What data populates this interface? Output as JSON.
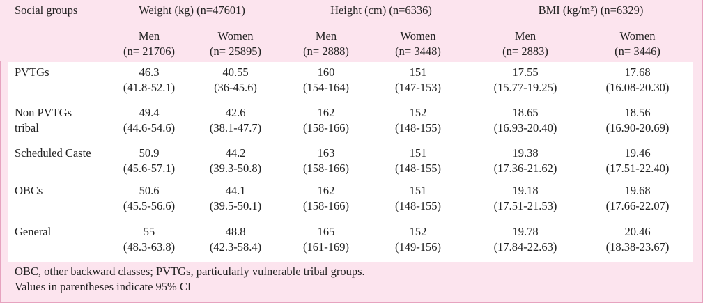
{
  "header": {
    "col0": "Social groups",
    "groups": [
      {
        "label": "Weight (kg) (n=47601)",
        "sub": [
          {
            "a": "Men",
            "b": "(n= 21706)"
          },
          {
            "a": "Women",
            "b": "(n= 25895)"
          }
        ]
      },
      {
        "label": "Height (cm) (n=6336)",
        "sub": [
          {
            "a": "Men",
            "b": "(n= 2888)"
          },
          {
            "a": "Women",
            "b": "(n= 3448)"
          }
        ]
      },
      {
        "label": "BMI (kg/m²) (n=6329)",
        "sub": [
          {
            "a": "Men",
            "b": "(n= 2883)"
          },
          {
            "a": "Women",
            "b": "(n= 3446)"
          }
        ]
      }
    ]
  },
  "rows": [
    {
      "label": [
        "PVTGs",
        ""
      ],
      "cells": [
        [
          "46.3",
          "(41.8-52.1)"
        ],
        [
          "40.55",
          "(36-45.6)"
        ],
        [
          "160",
          "(154-164)"
        ],
        [
          "151",
          "(147-153)"
        ],
        [
          "17.55",
          "(15.77-19.25)"
        ],
        [
          "17.68",
          "(16.08-20.30)"
        ]
      ]
    },
    {
      "label": [
        "Non PVTGs",
        "tribal"
      ],
      "cells": [
        [
          "49.4",
          "(44.6-54.6)"
        ],
        [
          "42.6",
          "(38.1-47.7)"
        ],
        [
          "162",
          "(158-166)"
        ],
        [
          "152",
          "(148-155)"
        ],
        [
          "18.65",
          "(16.93-20.40)"
        ],
        [
          "18.56",
          "(16.90-20.69)"
        ]
      ]
    },
    {
      "label": [
        "Scheduled Caste",
        ""
      ],
      "cells": [
        [
          "50.9",
          "(45.6-57.1)"
        ],
        [
          "44.2",
          "(39.3-50.8)"
        ],
        [
          "163",
          "(158-166)"
        ],
        [
          "151",
          "(148-155)"
        ],
        [
          "19.38",
          "(17.36-21.62)"
        ],
        [
          "19.46",
          "(17.51-22.40)"
        ]
      ]
    },
    {
      "label": [
        "OBCs",
        ""
      ],
      "cells": [
        [
          "50.6",
          "(45.5-56.6)"
        ],
        [
          "44.1",
          "(39.5-50.1)"
        ],
        [
          "162",
          "(158-166)"
        ],
        [
          "151",
          "(148-155)"
        ],
        [
          "19.18",
          "(17.51-21.53)"
        ],
        [
          "19.68",
          "(17.66-22.07)"
        ]
      ]
    },
    {
      "label": [
        "General",
        ""
      ],
      "cells": [
        [
          "55",
          "(48.3-63.8)"
        ],
        [
          "48.8",
          "(42.3-58.4)"
        ],
        [
          "165",
          "(161-169)"
        ],
        [
          "152",
          "(149-156)"
        ],
        [
          "19.78",
          "(17.84-22.63)"
        ],
        [
          "20.46",
          "(18.38-23.67)"
        ]
      ]
    }
  ],
  "footnotes": [
    "OBC, other backward classes; PVTGs, particularly vulnerable tribal groups.",
    "Values in parentheses indicate 95% CI"
  ]
}
